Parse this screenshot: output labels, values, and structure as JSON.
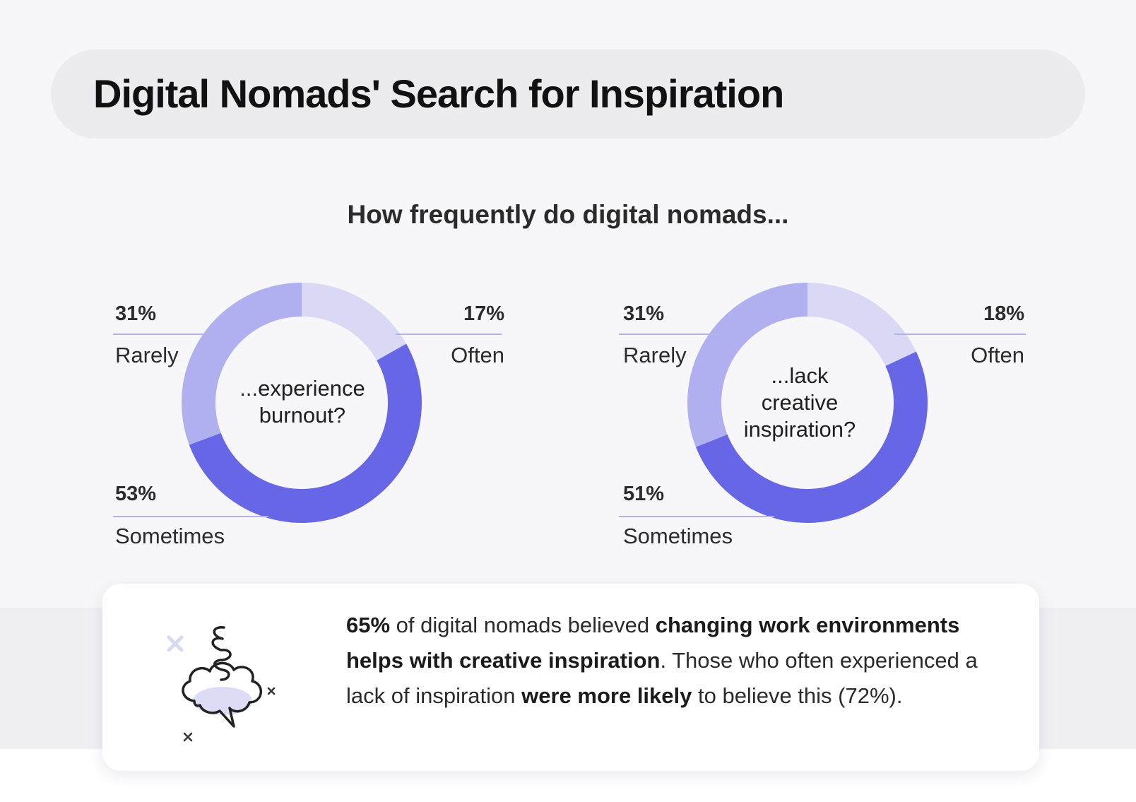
{
  "title": "Digital Nomads' Search for Inspiration",
  "chart_data": {
    "type": "pie",
    "title": "How frequently do digital nomads...",
    "colors": {
      "Often": "#d9d9f6",
      "Sometimes": "#6766e6",
      "Rarely": "#b0b0f0"
    },
    "charts": [
      {
        "question": "...experience burnout?",
        "slices": [
          {
            "label": "Often",
            "value": 17,
            "value_label": "17%"
          },
          {
            "label": "Sometimes",
            "value": 53,
            "value_label": "53%"
          },
          {
            "label": "Rarely",
            "value": 31,
            "value_label": "31%"
          }
        ]
      },
      {
        "question": "...lack creative inspiration?",
        "question_lines": [
          "...lack",
          "creative",
          "inspiration?"
        ],
        "slices": [
          {
            "label": "Often",
            "value": 18,
            "value_label": "18%"
          },
          {
            "label": "Sometimes",
            "value": 51,
            "value_label": "51%"
          },
          {
            "label": "Rarely",
            "value": 31,
            "value_label": "31%"
          }
        ]
      }
    ]
  },
  "callout": {
    "icon": "thought-cloud-icon",
    "p1": "65%",
    "p2": " of digital nomads believed ",
    "p3": "changing work environments helps with creative inspiration",
    "p4": ". Those who often experienced a lack of inspiration ",
    "p5": "were more likely",
    "p6": " to believe this (72%)."
  }
}
